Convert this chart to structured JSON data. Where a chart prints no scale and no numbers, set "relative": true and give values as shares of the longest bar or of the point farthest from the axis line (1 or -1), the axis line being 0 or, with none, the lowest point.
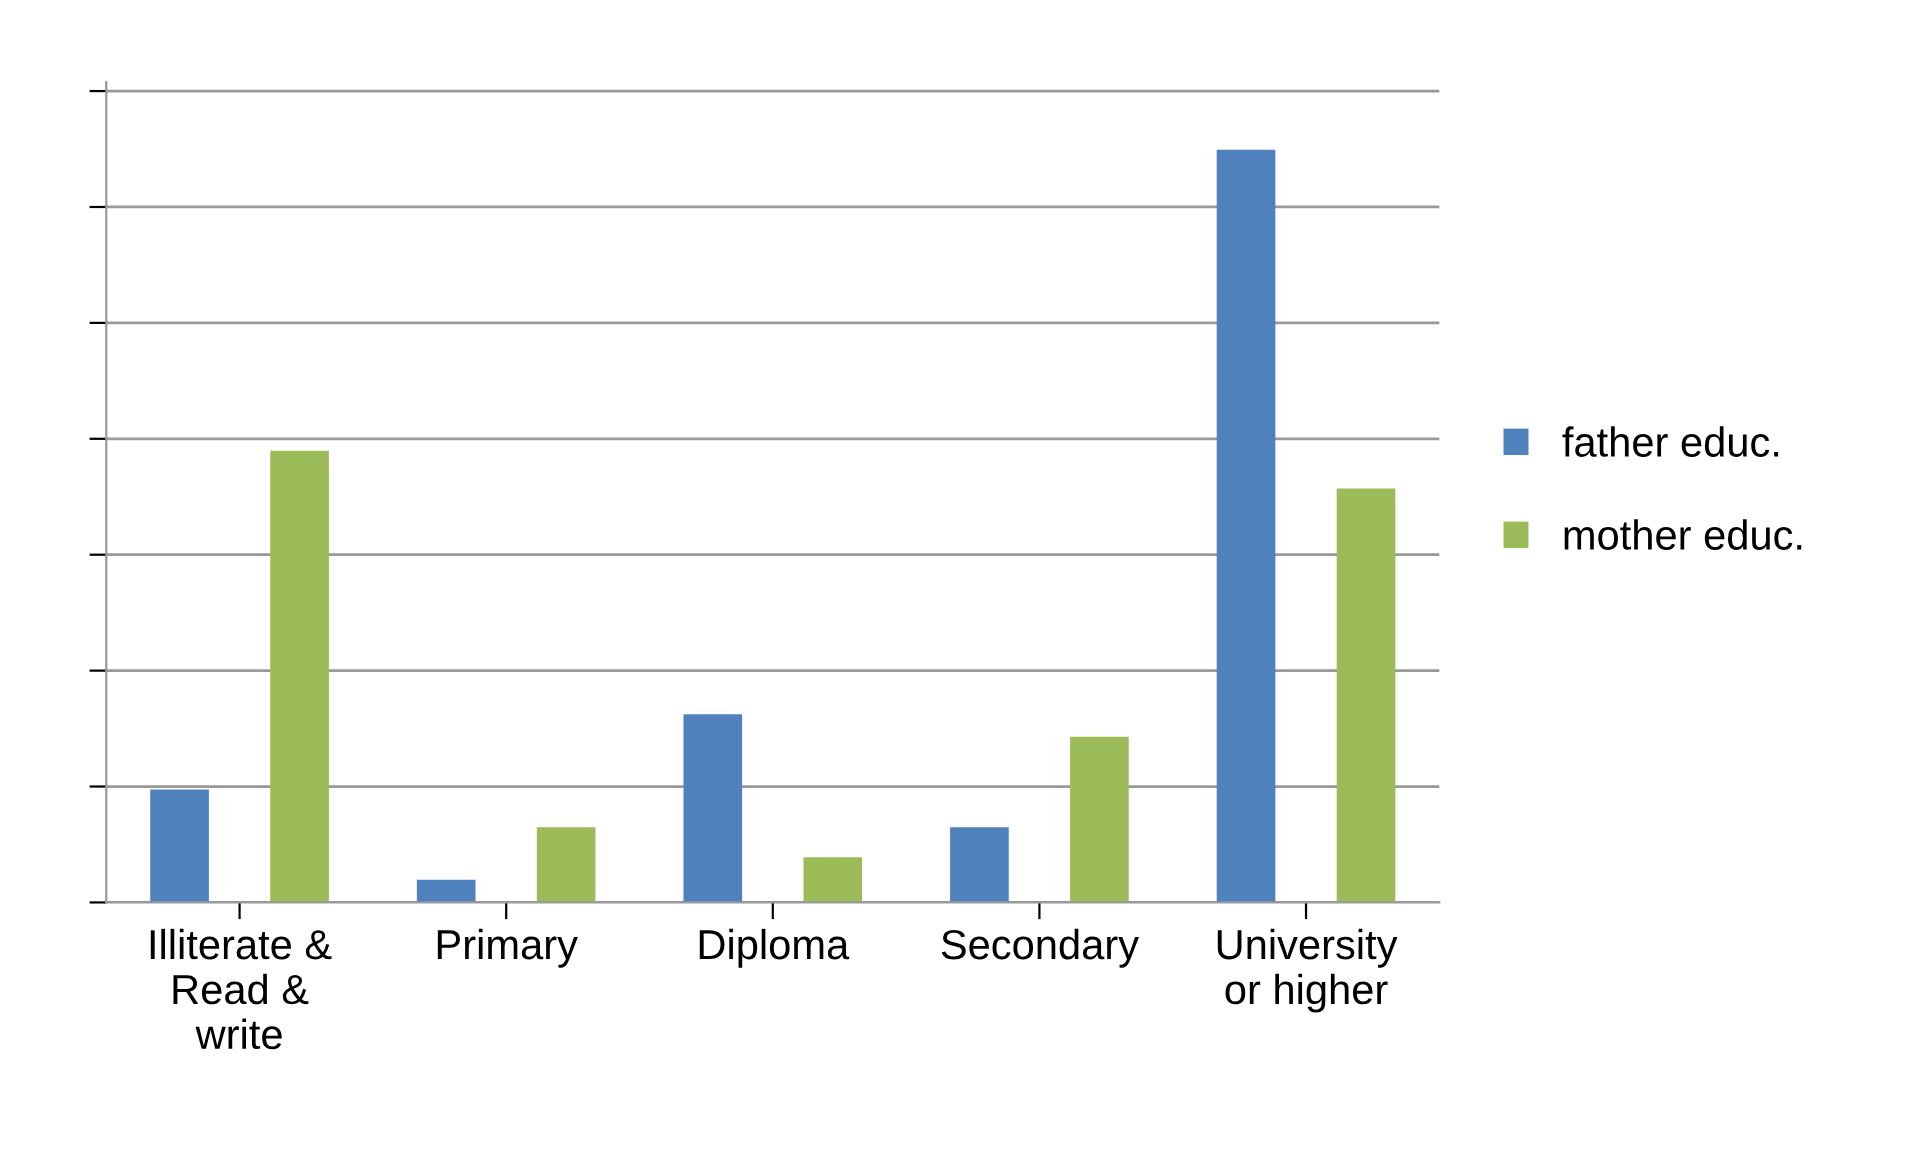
{
  "chart_data": {
    "type": "bar",
    "relative": true,
    "categories": [
      "Illiterate &\nRead &\nwrite",
      "Primary",
      "Diploma",
      "Secondary",
      "University\nor higher"
    ],
    "series": [
      {
        "name": "father educ.",
        "color": "#4f81bd",
        "values": [
          0.15,
          0.03,
          0.25,
          0.1,
          1
        ]
      },
      {
        "name": "mother educ.",
        "color": "#9bbb59",
        "values": [
          0.6,
          0.1,
          0.06,
          0.22,
          0.55
        ]
      }
    ],
    "grid": "y",
    "legend": "right",
    "tick_labels": "x"
  }
}
